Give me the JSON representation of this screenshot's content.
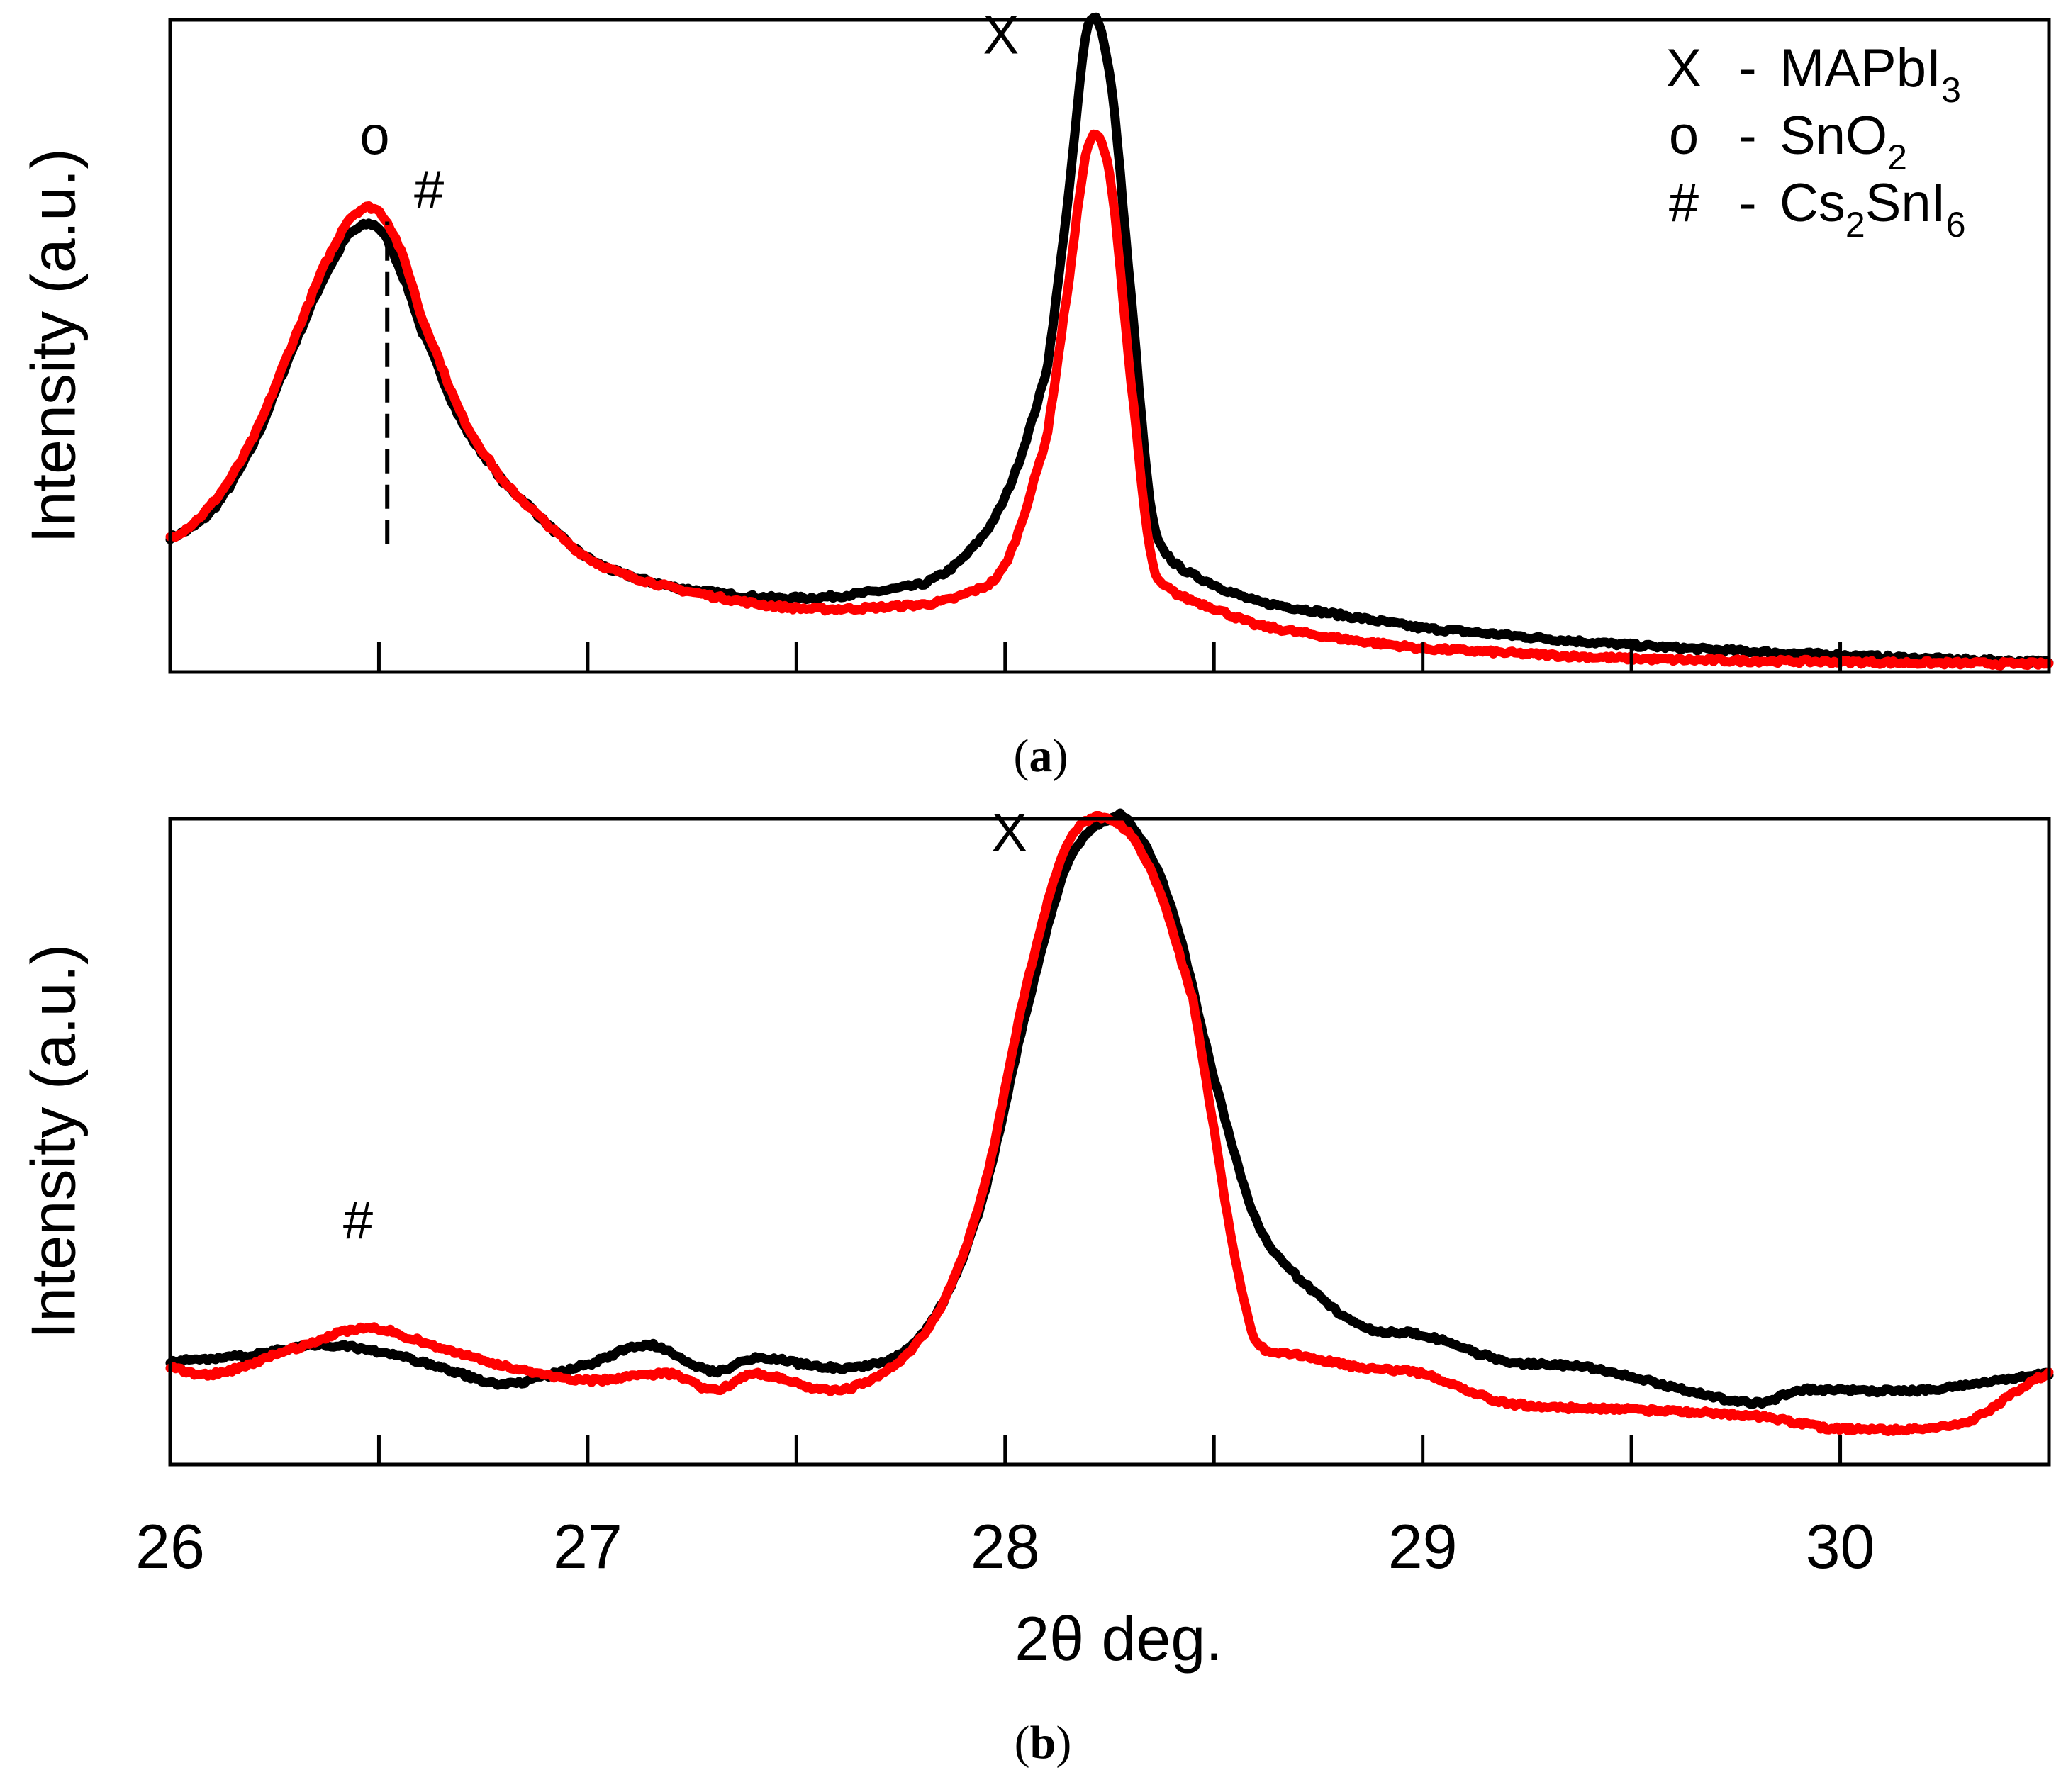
{
  "figure": {
    "xlabel": "2θ deg.",
    "x_tick_labels": [
      "26",
      "27",
      "28",
      "29",
      "30"
    ]
  },
  "colors": {
    "black_series": "#000000",
    "red_series": "#ff0000"
  },
  "chart_data": [
    {
      "type": "line",
      "panel": "a",
      "caption": {
        "open": "(",
        "letter": "a",
        "close": ")"
      },
      "ylabel": "Intensity (a.u.)",
      "xlabel": "2θ deg.",
      "xlim": [
        26,
        30.5
      ],
      "ylim": [
        0,
        1
      ],
      "x_ticks": [
        26,
        26.5,
        27,
        27.5,
        28,
        28.5,
        29,
        29.5,
        30,
        30.5
      ],
      "legend": [
        {
          "symbol": "X",
          "dash": "-",
          "label": "MAPbI",
          "sub": "3"
        },
        {
          "symbol": "o",
          "dash": "-",
          "label": "SnO",
          "sub": "2"
        },
        {
          "symbol": "#",
          "dash": "-",
          "label": "Cs",
          "sub": "2",
          "label2": "SnI",
          "sub2": "6"
        }
      ],
      "legend_position": "top-right",
      "annotations": [
        {
          "text": "o",
          "x": 26.49,
          "y": 0.8
        },
        {
          "text": "#",
          "x": 26.62,
          "y": 0.72
        },
        {
          "text": "X",
          "x": 27.99,
          "y": 0.95
        }
      ],
      "reference_line": {
        "x": 26.52,
        "y_from": 0.22,
        "y_to": 0.7,
        "style": "dashed"
      },
      "series": [
        {
          "name": "black",
          "color": "#000000",
          "x": [
            26.0,
            26.1,
            26.2,
            26.3,
            26.4,
            26.45,
            26.5,
            26.55,
            26.6,
            26.7,
            26.8,
            27.0,
            27.2,
            27.5,
            27.8,
            27.9,
            28.0,
            28.1,
            28.15,
            28.2,
            28.25,
            28.3,
            28.35,
            28.4,
            28.5,
            28.6,
            28.8,
            29.0,
            29.5,
            30.0,
            30.5
          ],
          "y": [
            0.23,
            0.27,
            0.37,
            0.52,
            0.65,
            0.69,
            0.69,
            0.63,
            0.54,
            0.4,
            0.31,
            0.2,
            0.157,
            0.14,
            0.16,
            0.2,
            0.29,
            0.48,
            0.73,
            0.995,
            0.92,
            0.6,
            0.27,
            0.195,
            0.16,
            0.135,
            0.115,
            0.095,
            0.07,
            0.055,
            0.045
          ]
        },
        {
          "name": "red",
          "color": "#ff0000",
          "x": [
            26.0,
            26.1,
            26.2,
            26.3,
            26.4,
            26.45,
            26.5,
            26.55,
            26.6,
            26.7,
            26.8,
            27.0,
            27.2,
            27.5,
            27.8,
            27.9,
            28.0,
            28.1,
            28.15,
            28.2,
            28.25,
            28.3,
            28.35,
            28.4,
            28.5,
            28.6,
            28.8,
            29.0,
            29.5,
            30.0,
            30.5
          ],
          "y": [
            0.23,
            0.28,
            0.38,
            0.53,
            0.67,
            0.715,
            0.715,
            0.66,
            0.56,
            0.41,
            0.31,
            0.2,
            0.155,
            0.125,
            0.13,
            0.145,
            0.19,
            0.38,
            0.6,
            0.815,
            0.77,
            0.47,
            0.2,
            0.15,
            0.125,
            0.1,
            0.08,
            0.065,
            0.05,
            0.045,
            0.042
          ]
        }
      ]
    },
    {
      "type": "line",
      "panel": "b",
      "caption": {
        "open": "(",
        "letter": "b",
        "close": ")"
      },
      "ylabel": "Intensity (a.u.)",
      "xlabel": "2θ deg.",
      "xlim": [
        26,
        30.5
      ],
      "ylim": [
        0,
        1
      ],
      "x_ticks": [
        26,
        26.5,
        27,
        27.5,
        28,
        28.5,
        29,
        29.5,
        30,
        30.5
      ],
      "annotations": [
        {
          "text": "#",
          "x": 26.45,
          "y": 0.35
        },
        {
          "text": "X",
          "x": 28.01,
          "y": 0.95
        }
      ],
      "series": [
        {
          "name": "black",
          "color": "#000000",
          "x": [
            26.0,
            26.2,
            26.35,
            26.5,
            26.65,
            26.8,
            27.0,
            27.15,
            27.3,
            27.4,
            27.6,
            27.75,
            27.85,
            27.95,
            28.05,
            28.15,
            28.25,
            28.3,
            28.4,
            28.5,
            28.6,
            28.7,
            28.85,
            29.0,
            29.2,
            29.4,
            29.6,
            29.8,
            29.9,
            30.2,
            30.5
          ],
          "y": [
            0.16,
            0.17,
            0.185,
            0.175,
            0.15,
            0.125,
            0.155,
            0.185,
            0.145,
            0.165,
            0.15,
            0.17,
            0.25,
            0.42,
            0.7,
            0.93,
            1.0,
            0.99,
            0.86,
            0.6,
            0.38,
            0.29,
            0.215,
            0.2,
            0.16,
            0.15,
            0.12,
            0.095,
            0.115,
            0.115,
            0.14
          ]
        },
        {
          "name": "red",
          "color": "#ff0000",
          "x": [
            26.0,
            26.1,
            26.3,
            26.45,
            26.5,
            26.55,
            26.7,
            26.85,
            27.0,
            27.2,
            27.3,
            27.4,
            27.6,
            27.75,
            27.85,
            27.95,
            28.05,
            28.15,
            28.25,
            28.35,
            28.45,
            28.5,
            28.55,
            28.6,
            28.7,
            28.85,
            29.0,
            29.2,
            29.5,
            29.8,
            30.0,
            30.3,
            30.5
          ],
          "y": [
            0.15,
            0.14,
            0.18,
            0.21,
            0.21,
            0.2,
            0.17,
            0.145,
            0.13,
            0.14,
            0.115,
            0.14,
            0.115,
            0.16,
            0.25,
            0.43,
            0.74,
            0.96,
            1.0,
            0.92,
            0.72,
            0.52,
            0.32,
            0.19,
            0.17,
            0.15,
            0.14,
            0.095,
            0.085,
            0.075,
            0.055,
            0.065,
            0.14
          ]
        }
      ]
    }
  ]
}
